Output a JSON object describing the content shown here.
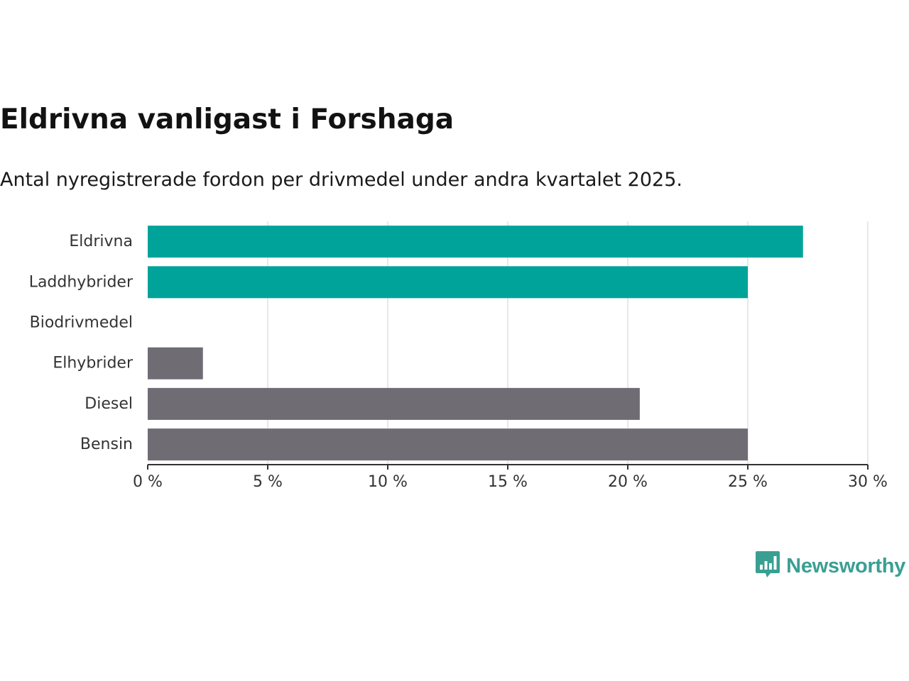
{
  "header": {
    "title": "Eldrivna vanligast i Forshaga",
    "subtitle": "Antal nyregistrerade fordon per drivmedel under andra kvartalet 2025."
  },
  "chart_data": {
    "type": "bar",
    "orientation": "horizontal",
    "title": "Eldrivna vanligast i Forshaga",
    "subtitle": "Antal nyregistrerade fordon per drivmedel under andra kvartalet 2025.",
    "xlabel": "",
    "ylabel": "",
    "categories": [
      "Eldrivna",
      "Laddhybrider",
      "Biodrivmedel",
      "Elhybrider",
      "Diesel",
      "Bensin"
    ],
    "values": [
      27.3,
      25.0,
      0,
      2.3,
      20.5,
      25.0
    ],
    "bar_colors": [
      "#00a39a",
      "#00a39a",
      "#00a39a",
      "#6f6d73",
      "#6f6d73",
      "#6f6d73"
    ],
    "xlim": [
      0,
      30
    ],
    "x_ticks": [
      0,
      5,
      10,
      15,
      20,
      25,
      30
    ],
    "x_tick_labels": [
      "0 %",
      "5 %",
      "10 %",
      "15 %",
      "20 %",
      "25 %",
      "30 %"
    ],
    "grid": true,
    "legend": "none",
    "colors": {
      "electric": "#00a39a",
      "fossil": "#6f6d73",
      "grid": "#e0e0e0",
      "axis": "#333333"
    }
  },
  "brand": {
    "name": "Newsworthy",
    "icon": "newsworthy-logo-icon",
    "color": "#3a9f93"
  }
}
